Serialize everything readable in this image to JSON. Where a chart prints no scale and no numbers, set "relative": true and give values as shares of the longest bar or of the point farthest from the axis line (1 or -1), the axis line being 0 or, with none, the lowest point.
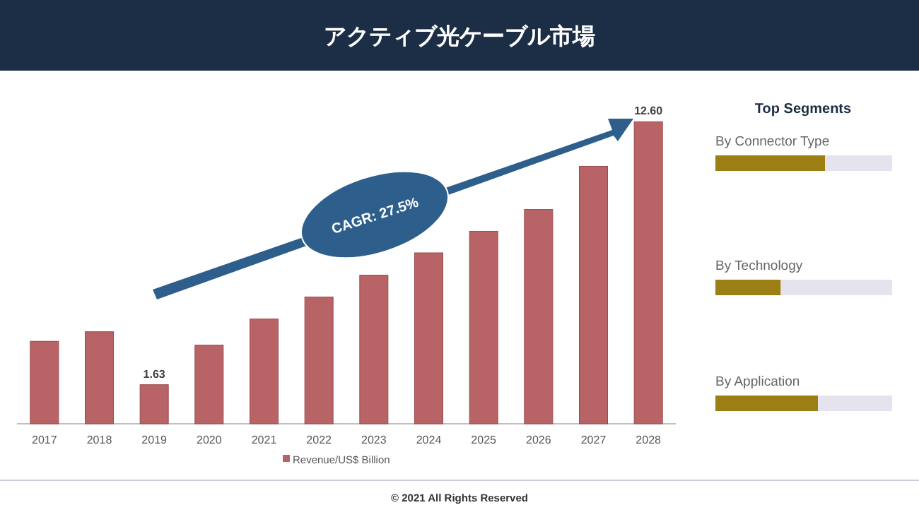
{
  "chart_data": [
    {
      "type": "bar",
      "title": "アクティブ光ケーブル市場",
      "categories": [
        "2017",
        "2018",
        "2019",
        "2020",
        "2021",
        "2022",
        "2023",
        "2024",
        "2025",
        "2026",
        "2027",
        "2028"
      ],
      "series": [
        {
          "name": "Revenue/US$ Billion",
          "color": "#b86467",
          "values": [
            3.44,
            3.84,
            1.63,
            3.28,
            4.37,
            5.29,
            6.2,
            7.13,
            8.03,
            8.94,
            10.74,
            12.6
          ],
          "value_labels": [
            null,
            null,
            "1.63",
            null,
            null,
            null,
            null,
            null,
            null,
            null,
            null,
            "12.60"
          ]
        }
      ],
      "legend": "bottom",
      "annotations": [
        "CAGR: 27.5%",
        "© 2021 All Rights Reserved"
      ]
    },
    {
      "type": "bar",
      "orientation": "horizontal",
      "stacked": true,
      "relative": true,
      "title": "Top Segments",
      "categories": [
        "By Connector Type",
        "By Technology",
        "By Application"
      ],
      "series": [
        {
          "color": "#9c7f14",
          "values": [
            0.62,
            0.37,
            0.58
          ]
        },
        {
          "color": "#e4e3ee",
          "values": [
            0.38,
            0.63,
            0.42
          ]
        }
      ]
    }
  ]
}
